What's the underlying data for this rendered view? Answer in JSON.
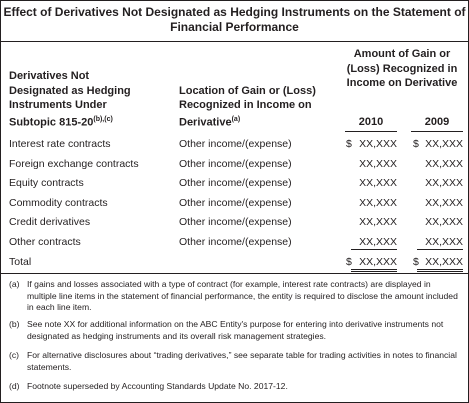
{
  "title": "Effect of Derivatives Not Designated as Hedging Instruments on the Statement of Financial Performance",
  "table": {
    "headers": [
      {
        "text": "Derivatives Not Designated as Hedging Instruments Under Subtopic 815-20",
        "note": "(b),(c)"
      },
      {
        "text": "Location of Gain or (Loss) Recognized in Income on Derivative",
        "note": "(a)"
      },
      {
        "text": "Amount of Gain or (Loss) Recognized in Income on Derivative"
      }
    ],
    "years": [
      "2010",
      "2009"
    ],
    "currency": "$",
    "rows": [
      {
        "label": "Interest rate contracts",
        "location": "Other income/(expense)",
        "values": [
          "XX,XXX",
          "XX,XXX"
        ]
      },
      {
        "label": "Foreign exchange contracts",
        "location": "Other income/(expense)",
        "values": [
          "XX,XXX",
          "XX,XXX"
        ]
      },
      {
        "label": "Equity contracts",
        "location": "Other income/(expense)",
        "values": [
          "XX,XXX",
          "XX,XXX"
        ]
      },
      {
        "label": "Commodity contracts",
        "location": "Other income/(expense)",
        "values": [
          "XX,XXX",
          "XX,XXX"
        ]
      },
      {
        "label": "Credit derivatives",
        "location": "Other income/(expense)",
        "values": [
          "XX,XXX",
          "XX,XXX"
        ]
      },
      {
        "label": "Other contracts",
        "location": "Other income/(expense)",
        "values": [
          "XX,XXX",
          "XX,XXX"
        ]
      }
    ],
    "total": {
      "label": "Total",
      "values": [
        "XX,XXX",
        "XX,XXX"
      ]
    }
  },
  "footnotes": [
    {
      "marker": "(a)",
      "text": "If gains and losses associated with a type of contract (for example, interest rate contracts) are displayed in multiple line items in the statement of financial performance, the entity is required to disclose the amount included in each line item."
    },
    {
      "marker": "(b)",
      "text": "See note XX for additional information on the ABC Entity's purpose for entering into derivative instruments not designated as hedging instruments and its overall risk management strategies."
    },
    {
      "marker": "(c)",
      "text": "For alternative disclosures about “trading derivatives,” see separate table for trading activities in notes to financial statements."
    },
    {
      "marker": "(d)",
      "text": "Footnote superseded by Accounting Standards Update No. 2017-12."
    }
  ]
}
